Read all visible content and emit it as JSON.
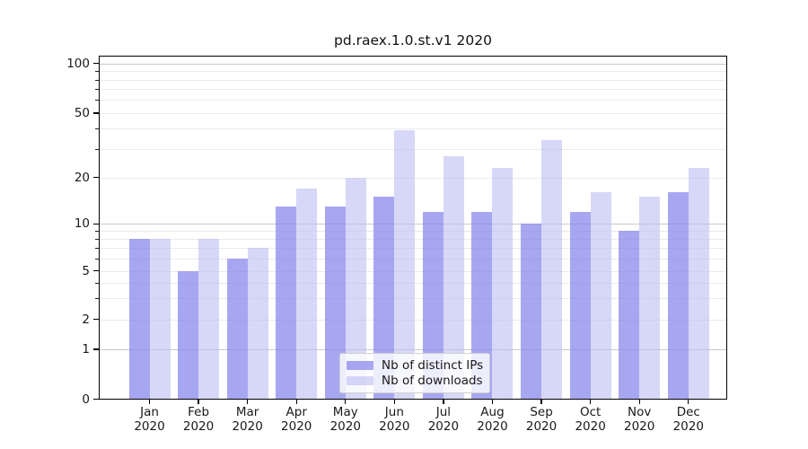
{
  "figure": {
    "title": "pd.raex.1.0.st.v1 2020"
  },
  "chart_data": {
    "type": "bar",
    "title": "pd.raex.1.0.st.v1 2020",
    "categories": [
      "Jan 2020",
      "Feb 2020",
      "Mar 2020",
      "Apr 2020",
      "May 2020",
      "Jun 2020",
      "Jul 2020",
      "Aug 2020",
      "Sep 2020",
      "Oct 2020",
      "Nov 2020",
      "Dec 2020"
    ],
    "series": [
      {
        "name": "Nb of distinct IPs",
        "color": "rgba(133,133,235,0.72)",
        "values": [
          8,
          5,
          6,
          13,
          13,
          15,
          12,
          12,
          10,
          12,
          9,
          16
        ]
      },
      {
        "name": "Nb of downloads",
        "color": "rgba(191,191,242,0.62)",
        "values": [
          8,
          8,
          7,
          17,
          20,
          39,
          27,
          23,
          34,
          16,
          15,
          23
        ]
      }
    ],
    "xlabel": "",
    "ylabel": "",
    "yscale": "quasi-log (linear 0-1, logarithmic above)",
    "ylim": [
      0,
      110
    ],
    "y_major_ticks": [
      0,
      1,
      2,
      5,
      10,
      20,
      50,
      100
    ],
    "y_decade_gridlines": [
      1,
      10,
      100
    ],
    "y_sub_gridlines": [
      2,
      5,
      20,
      50
    ],
    "y_minor_gridlines": [
      3,
      4,
      6,
      7,
      8,
      9,
      30,
      40,
      60,
      70,
      80,
      90
    ],
    "grid": true,
    "legend_position": "lower center"
  },
  "legend": {
    "entries": [
      "Nb of distinct IPs",
      "Nb of downloads"
    ]
  }
}
